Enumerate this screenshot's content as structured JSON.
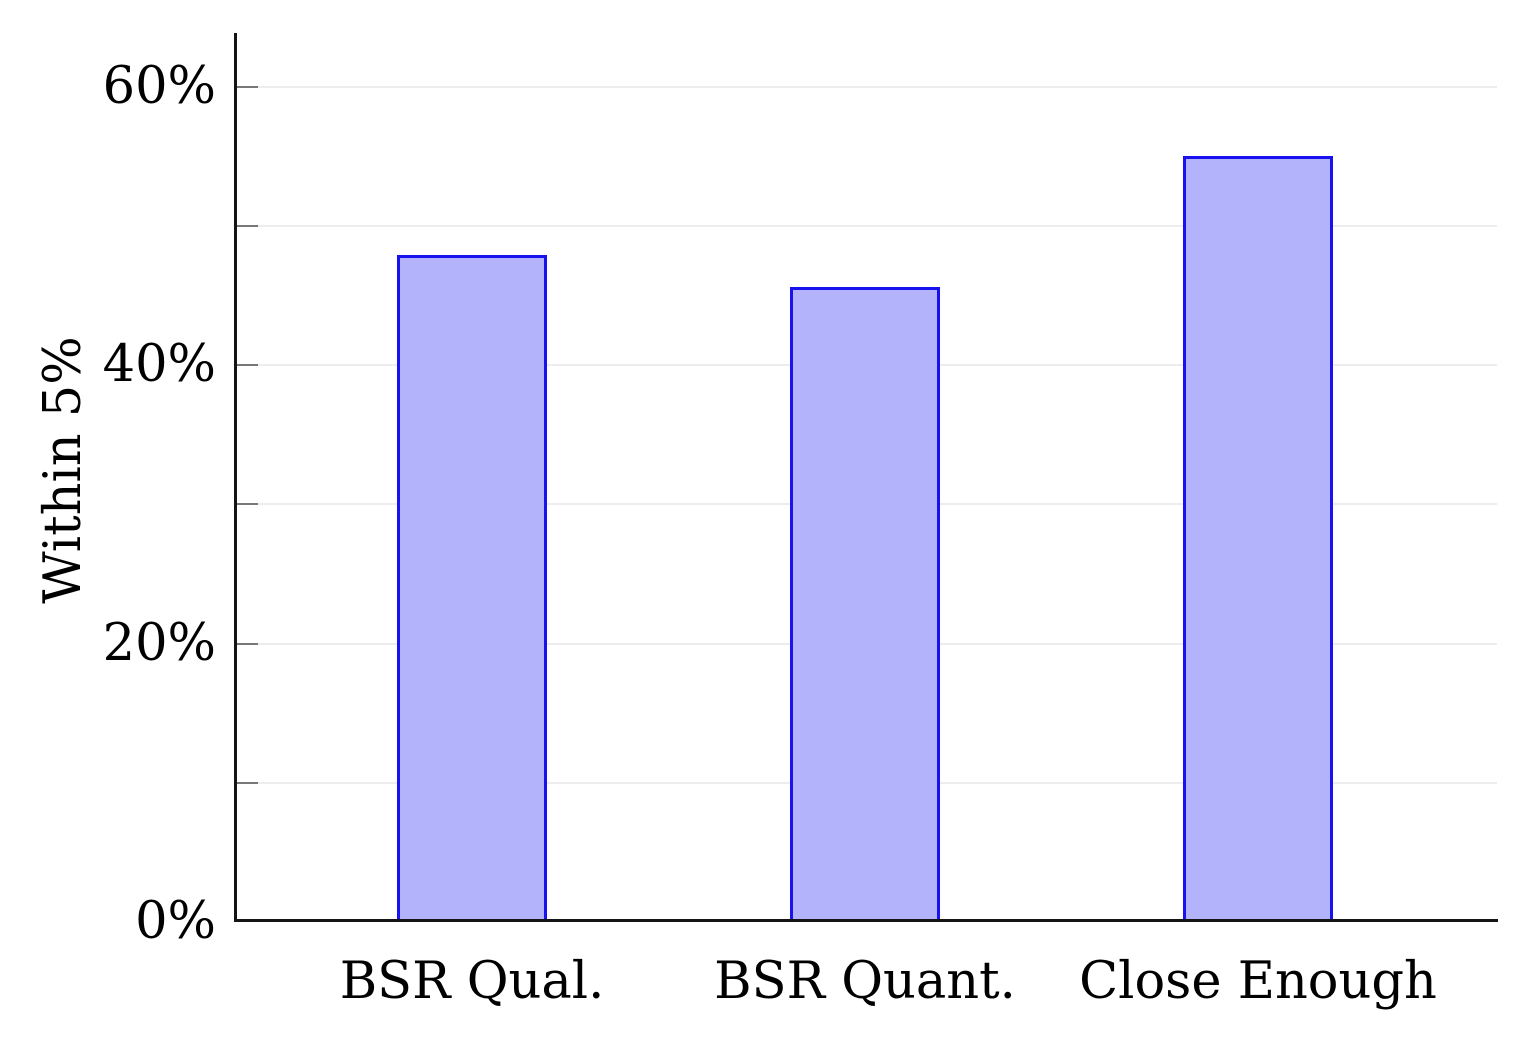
{
  "chart_data": {
    "type": "bar",
    "title": "",
    "categories": [
      "BSR Qual.",
      "BSR Quant.",
      "Close Enough"
    ],
    "values": [
      47.9,
      45.6,
      55.0
    ],
    "xlabel": "",
    "ylabel": "Within 5%",
    "ylim": [
      0,
      63.8
    ],
    "y_major_ticks": [
      0,
      20,
      40,
      60
    ],
    "y_tick_labels": [
      "0%",
      "20%",
      "40%",
      "60%"
    ],
    "y_minor_ticks": [
      10,
      30,
      50
    ],
    "grid": "horizontal lines every 10%, ticks inside axis",
    "legend": "none",
    "colors": {
      "bar_fill": "#b3b3fb",
      "bar_border": "#1712ef",
      "grid_line": "#ededed",
      "tick_mark": "#787878",
      "axis": "#141414",
      "text": "#000000",
      "background": "#ffffff"
    }
  }
}
